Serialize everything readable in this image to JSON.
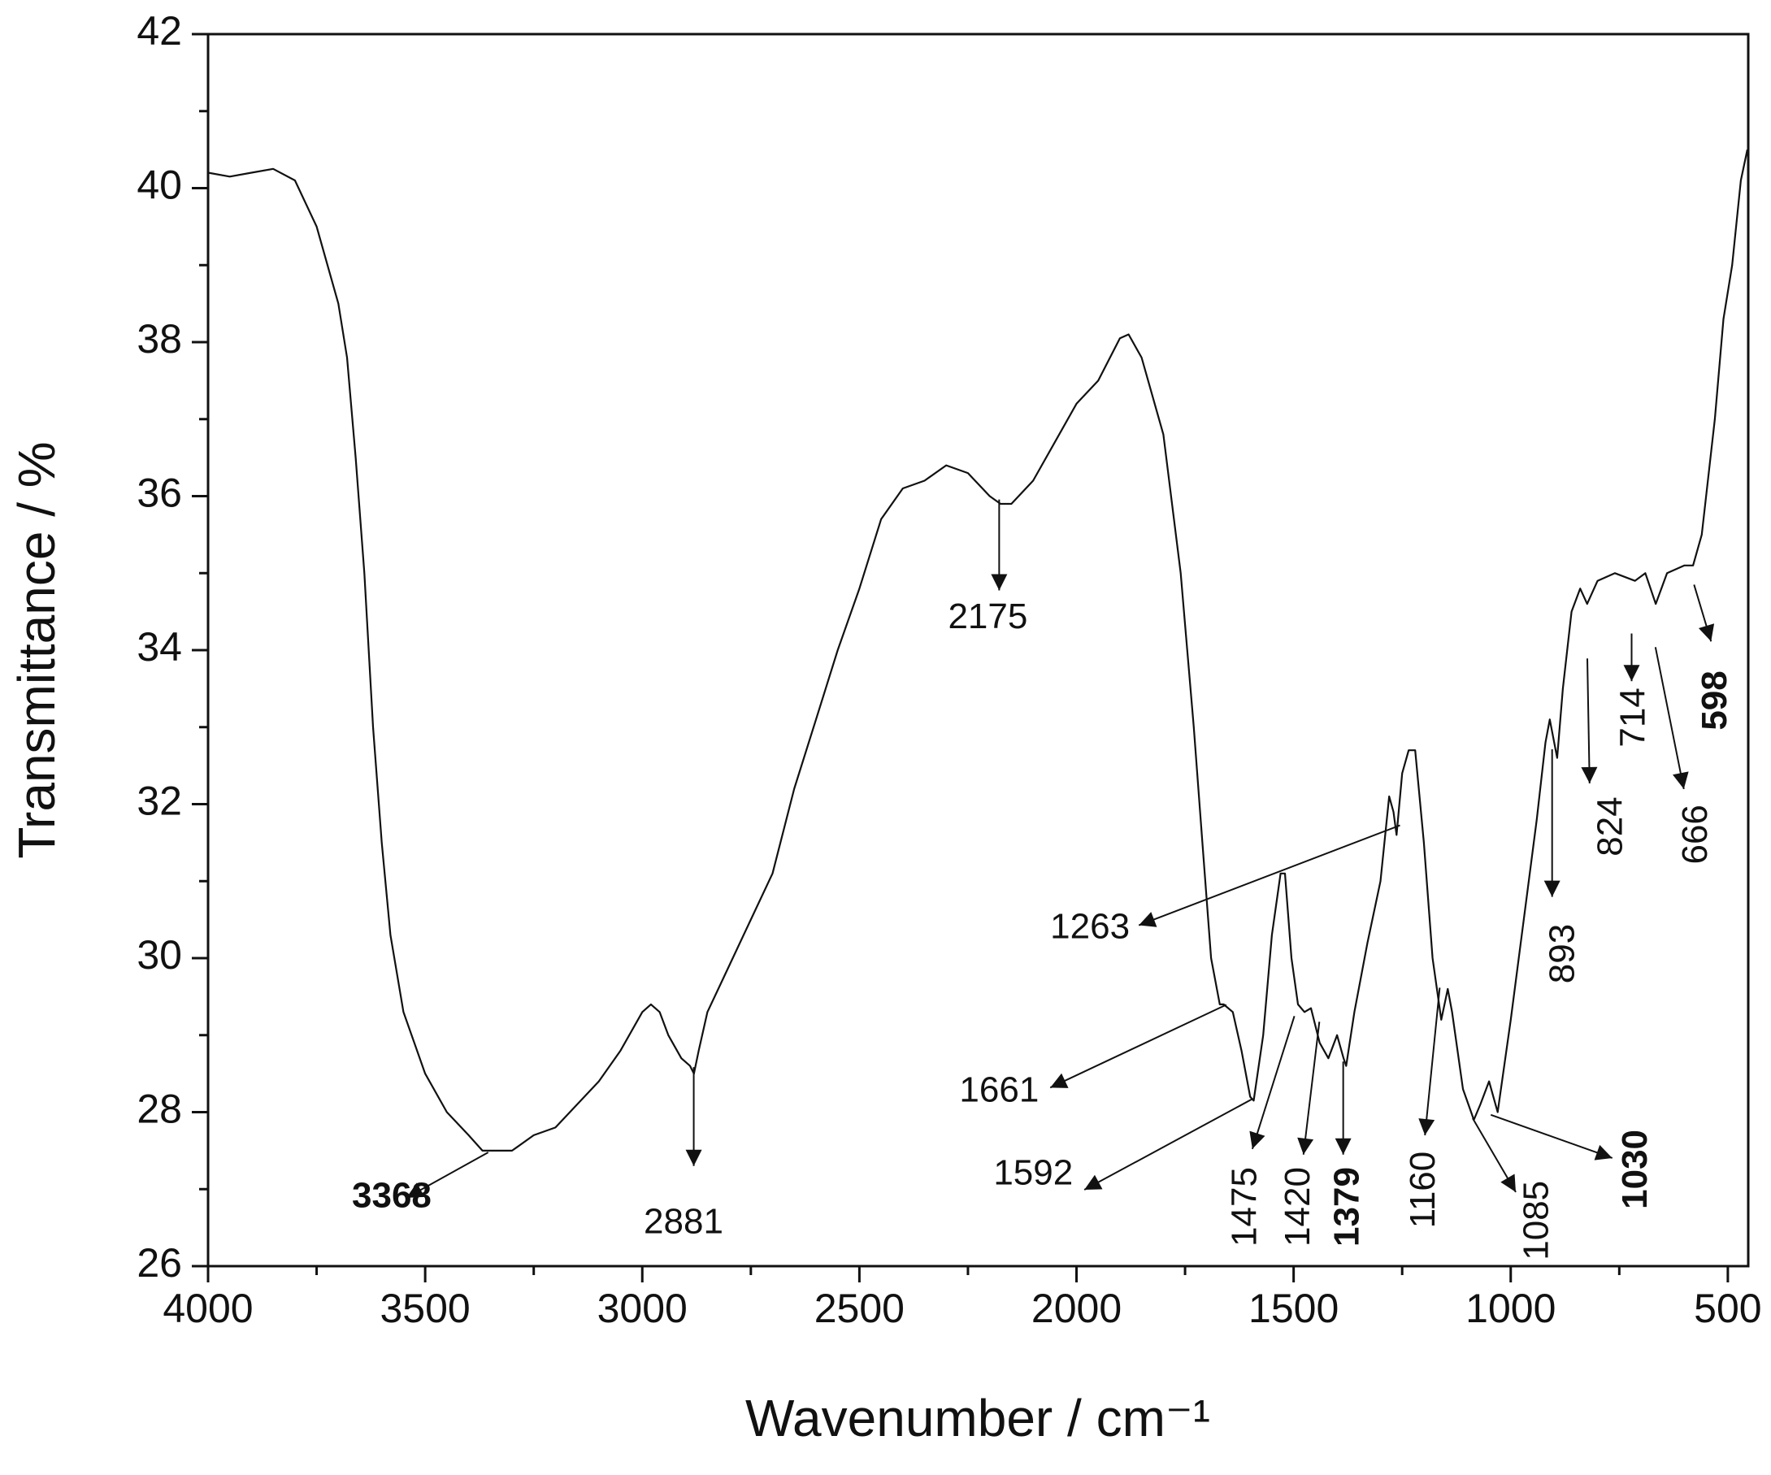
{
  "chart_data": {
    "type": "line",
    "xlabel": "Wavenumber / cm⁻¹",
    "ylabel": "Transmittance / %",
    "xlim": [
      4000,
      453
    ],
    "ylim": [
      26,
      42
    ],
    "xticks": [
      4000,
      3500,
      3000,
      2500,
      2000,
      1500,
      1000,
      500
    ],
    "xminorticks": [
      3750,
      3250,
      2750,
      2250,
      1750,
      1250,
      750
    ],
    "yticks": [
      26,
      28,
      30,
      32,
      34,
      36,
      38,
      40,
      42
    ],
    "yminorticks": [
      27,
      29,
      31,
      33,
      35,
      37,
      39,
      41
    ],
    "color": "#111111",
    "x": [
      4000,
      3950,
      3900,
      3850,
      3800,
      3750,
      3700,
      3680,
      3660,
      3640,
      3620,
      3600,
      3580,
      3550,
      3500,
      3450,
      3400,
      3368,
      3330,
      3300,
      3250,
      3200,
      3150,
      3100,
      3050,
      3000,
      2980,
      2960,
      2940,
      2910,
      2890,
      2881,
      2870,
      2850,
      2800,
      2750,
      2700,
      2650,
      2600,
      2550,
      2500,
      2450,
      2400,
      2350,
      2300,
      2250,
      2200,
      2175,
      2150,
      2100,
      2050,
      2000,
      1950,
      1900,
      1880,
      1850,
      1800,
      1760,
      1730,
      1710,
      1690,
      1670,
      1661,
      1640,
      1620,
      1600,
      1592,
      1570,
      1550,
      1530,
      1520,
      1505,
      1490,
      1475,
      1460,
      1440,
      1420,
      1400,
      1385,
      1379,
      1360,
      1330,
      1300,
      1280,
      1270,
      1263,
      1250,
      1235,
      1220,
      1200,
      1180,
      1160,
      1145,
      1135,
      1110,
      1085,
      1070,
      1050,
      1040,
      1030,
      1000,
      970,
      940,
      920,
      910,
      893,
      880,
      860,
      840,
      824,
      800,
      760,
      714,
      690,
      666,
      640,
      600,
      580,
      560,
      530,
      510,
      490,
      470,
      455
    ],
    "values": [
      40.2,
      40.15,
      40.2,
      40.25,
      40.1,
      39.5,
      38.5,
      37.8,
      36.5,
      35,
      33,
      31.5,
      30.3,
      29.3,
      28.5,
      28,
      27.7,
      27.5,
      27.5,
      27.5,
      27.7,
      27.8,
      28.1,
      28.4,
      28.8,
      29.3,
      29.4,
      29.3,
      29,
      28.7,
      28.6,
      28.5,
      28.8,
      29.3,
      29.9,
      30.5,
      31.1,
      32.2,
      33.1,
      34,
      34.8,
      35.7,
      36.1,
      36.2,
      36.4,
      36.3,
      36,
      35.9,
      35.9,
      36.2,
      36.7,
      37.2,
      37.5,
      38.05,
      38.1,
      37.8,
      36.8,
      35,
      33,
      31.5,
      30,
      29.4,
      29.4,
      29.3,
      28.8,
      28.2,
      28.15,
      29,
      30.3,
      31.1,
      31.1,
      30,
      29.4,
      29.3,
      29.35,
      28.9,
      28.7,
      29,
      28.7,
      28.6,
      29.3,
      30.2,
      31,
      32.1,
      31.9,
      31.6,
      32.4,
      32.7,
      32.7,
      31.5,
      30,
      29.2,
      29.6,
      29.3,
      28.3,
      27.9,
      28.1,
      28.4,
      28.2,
      28,
      29.2,
      30.5,
      31.8,
      32.8,
      33.1,
      32.6,
      33.5,
      34.5,
      34.8,
      34.6,
      34.9,
      35,
      34.9,
      35,
      34.6,
      35,
      35.1,
      35.1,
      35.5,
      37,
      38.3,
      39,
      40.1,
      40.5
    ],
    "annotations": [
      {
        "text": "3368",
        "bold": true
      },
      {
        "text": "2881"
      },
      {
        "text": "2175"
      },
      {
        "text": "1263"
      },
      {
        "text": "1661"
      },
      {
        "text": "1592"
      },
      {
        "text": "1475"
      },
      {
        "text": "1420"
      },
      {
        "text": "1379",
        "bold": true
      },
      {
        "text": "1160"
      },
      {
        "text": "1085"
      },
      {
        "text": "1030",
        "bold": true
      },
      {
        "text": "893"
      },
      {
        "text": "824"
      },
      {
        "text": "714"
      },
      {
        "text": "666"
      },
      {
        "text": "598",
        "bold": true
      }
    ]
  }
}
